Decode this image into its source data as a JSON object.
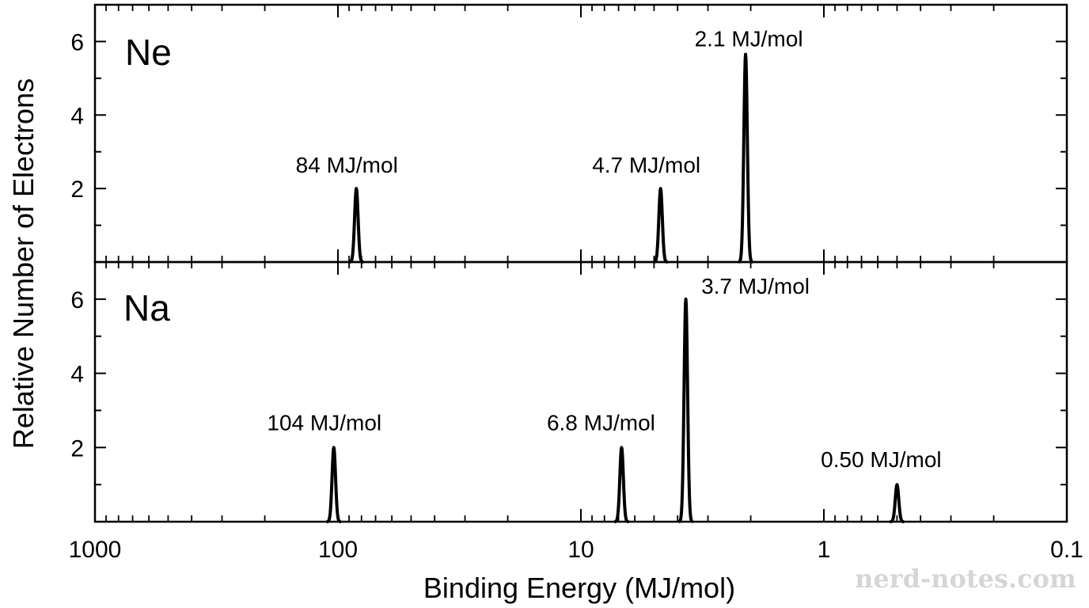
{
  "watermark": "nerd-notes.com",
  "chart_data": {
    "type": "line",
    "xlabel": "Binding Energy (MJ/mol)",
    "ylabel": "Relative Number of Electrons",
    "x_scale": "log",
    "x_reversed": true,
    "xlim": [
      1000,
      0.1
    ],
    "x_ticks": [
      {
        "value": 1000,
        "label": "1000"
      },
      {
        "value": 100,
        "label": "100"
      },
      {
        "value": 10,
        "label": "10"
      },
      {
        "value": 1,
        "label": "1"
      },
      {
        "value": 0.1,
        "label": "0.1"
      }
    ],
    "ylim": [
      0,
      7
    ],
    "y_ticks": [
      {
        "value": 2,
        "label": "2"
      },
      {
        "value": 4,
        "label": "4"
      },
      {
        "value": 6,
        "label": "6"
      }
    ],
    "grid": false,
    "panels": [
      {
        "name": "Ne",
        "peaks": [
          {
            "energy": 84,
            "height": 2,
            "label": "84 MJ/mol"
          },
          {
            "energy": 4.7,
            "height": 2,
            "label": "4.7 MJ/mol"
          },
          {
            "energy": 2.1,
            "height": 5.65,
            "label": "2.1 MJ/mol"
          }
        ]
      },
      {
        "name": "Na",
        "peaks": [
          {
            "energy": 104,
            "height": 2,
            "label": "104 MJ/mol"
          },
          {
            "energy": 6.8,
            "height": 2,
            "label": "6.8 MJ/mol"
          },
          {
            "energy": 3.7,
            "height": 6,
            "label": "3.7 MJ/mol"
          },
          {
            "energy": 0.5,
            "height": 1,
            "label": "0.50 MJ/mol"
          }
        ]
      }
    ]
  }
}
